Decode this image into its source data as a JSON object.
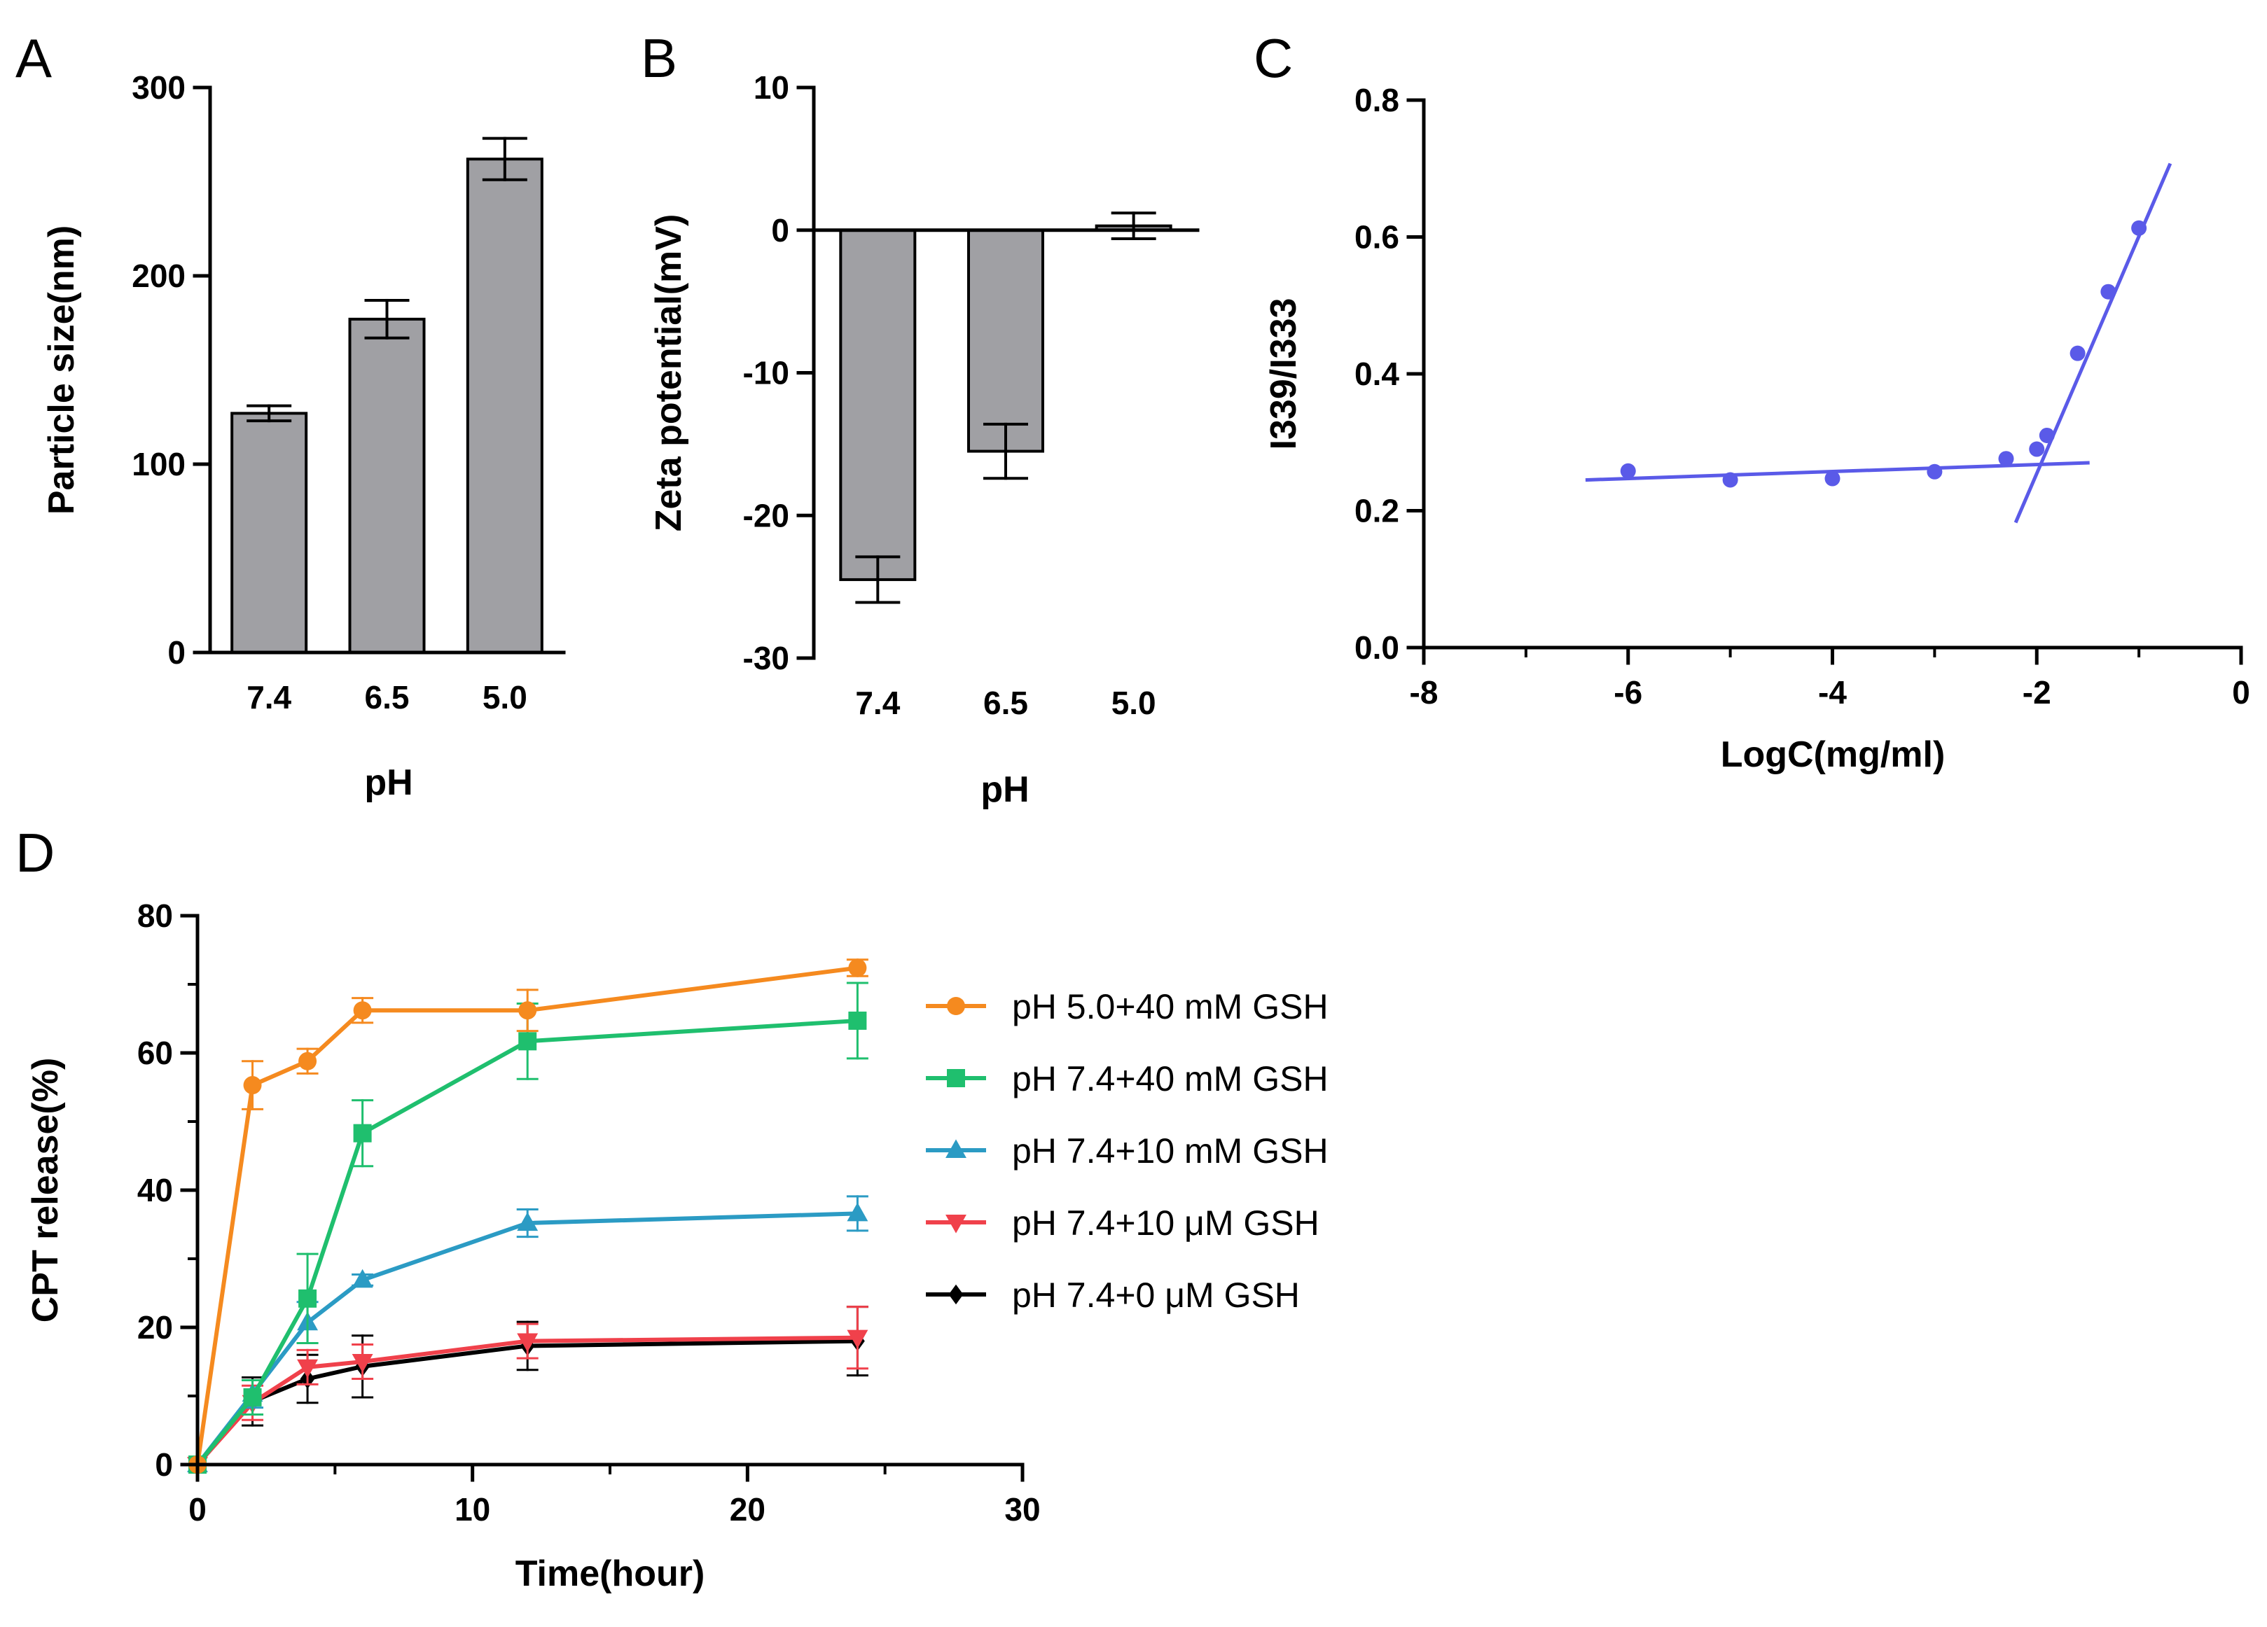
{
  "colors": {
    "bar_fill": "#a0a0a4",
    "axis": "#000000",
    "fit_line": "#5a5ae8",
    "series": [
      "#f58a1f",
      "#1fbf6e",
      "#2b9bc4",
      "#f0414b",
      "#000000"
    ]
  },
  "chart_data": [
    {
      "id": "A",
      "panel_label": "A",
      "type": "bar",
      "title": "",
      "xlabel": "pH",
      "ylabel": "Particle size(nm)",
      "categories": [
        "7.4",
        "6.5",
        "5.0"
      ],
      "values": [
        127,
        177,
        262
      ],
      "errors": [
        4,
        10,
        11
      ],
      "ylim": [
        0,
        300
      ],
      "yticks": [
        0,
        100,
        200,
        300
      ],
      "grid": false
    },
    {
      "id": "B",
      "panel_label": "B",
      "type": "bar",
      "title": "",
      "xlabel": "pH",
      "ylabel": "Zeta potential(mV)",
      "categories": [
        "7.4",
        "6.5",
        "5.0"
      ],
      "values": [
        -24.5,
        -15.5,
        0.3
      ],
      "errors": [
        1.6,
        1.9,
        0.9
      ],
      "ylim": [
        -30,
        10
      ],
      "yticks": [
        -30,
        -20,
        -10,
        0,
        10
      ],
      "grid": false
    },
    {
      "id": "C",
      "panel_label": "C",
      "type": "scatter",
      "title": "",
      "xlabel": "LogC(mg/ml)",
      "ylabel": "I339/I333",
      "x": [
        -6,
        -5,
        -4,
        -3,
        -2.3,
        -2,
        -1.9,
        -1.6,
        -1.3,
        -1
      ],
      "y": [
        0.258,
        0.245,
        0.247,
        0.257,
        0.276,
        0.29,
        0.31,
        0.43,
        0.52,
        0.613
      ],
      "fit_lines": [
        {
          "x": [
            -6.4,
            -1.5
          ],
          "y": [
            0.245,
            0.27
          ]
        },
        {
          "x": [
            -2.2,
            -0.7
          ],
          "y": [
            0.185,
            0.705
          ]
        }
      ],
      "xlim": [
        -8,
        0
      ],
      "ylim": [
        0,
        0.8
      ],
      "xticks": [
        -8,
        -6,
        -4,
        -2,
        0
      ],
      "yticks": [
        "0.0",
        "0.2",
        "0.4",
        "0.6",
        "0.8"
      ],
      "grid": false
    },
    {
      "id": "D",
      "panel_label": "D",
      "type": "line",
      "title": "",
      "xlabel": "Time(hour)",
      "ylabel": "CPT release(%)",
      "x": [
        0,
        2,
        4,
        6,
        12,
        24
      ],
      "xlim": [
        0,
        30
      ],
      "ylim": [
        0,
        80
      ],
      "xticks": [
        0,
        10,
        20,
        30
      ],
      "yticks": [
        0,
        20,
        40,
        60,
        80
      ],
      "legend_position": "right",
      "grid": false,
      "series": [
        {
          "name": "pH 5.0+40 mM GSH",
          "marker": "circle",
          "values": [
            0,
            55.3,
            58.8,
            66.2,
            66.2,
            72.4
          ],
          "errors": [
            0,
            3.5,
            1.8,
            1.8,
            3.0,
            1.2
          ]
        },
        {
          "name": "pH 7.4+40 mM GSH",
          "marker": "square",
          "values": [
            0,
            9.8,
            24.2,
            48.3,
            61.7,
            64.7
          ],
          "errors": [
            0,
            2.5,
            6.5,
            4.8,
            5.5,
            5.5
          ]
        },
        {
          "name": "pH 7.4+10 mM GSH",
          "marker": "triangle-up",
          "values": [
            0,
            10.3,
            20.7,
            26.9,
            35.2,
            36.6
          ],
          "errors": [
            0,
            2.0,
            3.0,
            0.8,
            2.0,
            2.5
          ]
        },
        {
          "name": "pH 7.4+10 μM GSH",
          "marker": "triangle-down",
          "values": [
            0,
            9.0,
            14.2,
            15.0,
            18.0,
            18.5
          ],
          "errors": [
            0,
            2.5,
            2.5,
            2.5,
            2.5,
            4.5
          ]
        },
        {
          "name": "pH 7.4+0 μM GSH",
          "marker": "diamond",
          "values": [
            0,
            9.2,
            12.5,
            14.3,
            17.3,
            18.0
          ],
          "errors": [
            0,
            3.5,
            3.5,
            4.5,
            3.5,
            5.0
          ]
        }
      ]
    }
  ]
}
